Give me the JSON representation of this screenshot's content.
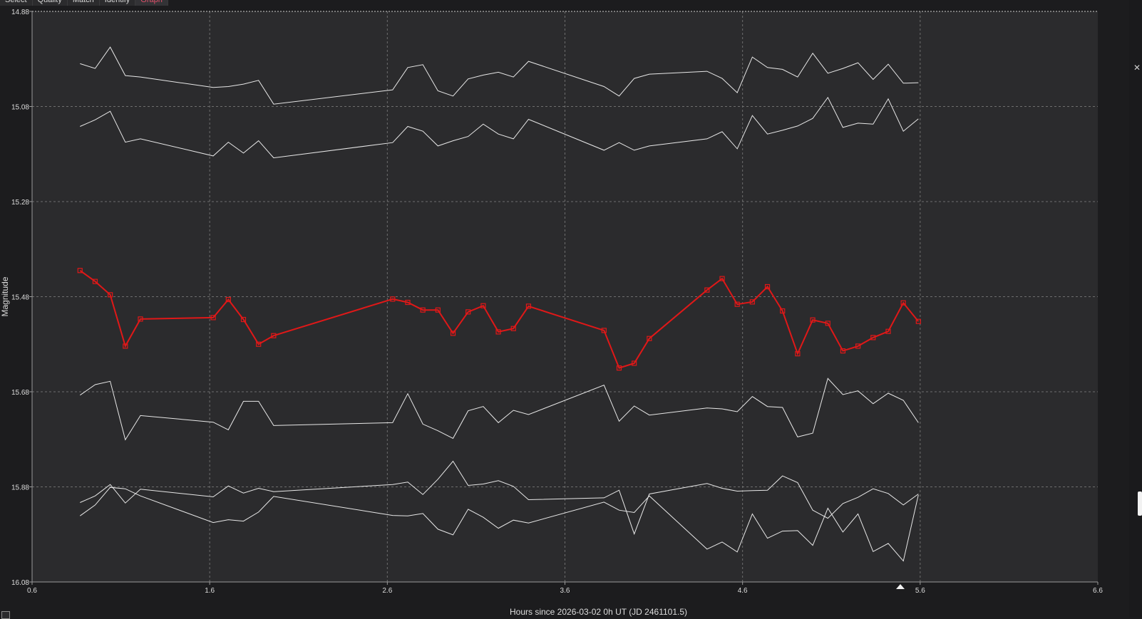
{
  "tabs": [
    "Select",
    "Quality",
    "Match",
    "Identify",
    "Graph"
  ],
  "active_tab": "Graph",
  "colors": {
    "background": "#2b2b2d",
    "target": "#e01818",
    "comparison": "#e8e8e8",
    "grid": "#6e6e6e"
  },
  "chart_data": {
    "type": "line",
    "xlabel": "Hours since 2026-03-02 0h UT (JD 2461101.5)",
    "ylabel": "Magnitude",
    "xlim": [
      0.6,
      6.6
    ],
    "ylim": [
      14.88,
      16.08
    ],
    "y_inverted": true,
    "grid": true,
    "xticks": [
      "0.6",
      "1.6",
      "2.6",
      "3.6",
      "4.6",
      "5.6",
      "6.6"
    ],
    "yticks": [
      "14.88",
      "15.08",
      "15.28",
      "15.48",
      "15.68",
      "15.88",
      "16.08"
    ],
    "x": [
      0.87,
      0.955,
      1.04,
      1.125,
      1.21,
      1.62,
      1.705,
      1.79,
      1.875,
      1.96,
      2.63,
      2.715,
      2.8,
      2.885,
      2.97,
      3.055,
      3.14,
      3.225,
      3.31,
      3.395,
      3.82,
      3.905,
      3.99,
      4.075,
      4.4,
      4.485,
      4.57,
      4.655,
      4.74,
      4.825,
      4.91,
      4.995,
      5.08,
      5.165,
      5.25,
      5.335,
      5.42,
      5.505,
      5.59
    ],
    "series": [
      {
        "role": "comparison-1",
        "values": [
          14.99,
          15.0,
          14.955,
          15.015,
          15.018,
          15.04,
          15.038,
          15.033,
          15.025,
          15.075,
          15.045,
          14.998,
          14.992,
          15.047,
          15.058,
          15.022,
          15.014,
          15.008,
          15.018,
          14.985,
          15.038,
          15.058,
          15.021,
          15.012,
          15.006,
          15.021,
          15.051,
          14.976,
          14.998,
          15.002,
          15.018,
          14.968,
          15.01,
          15.0,
          14.988,
          15.023,
          14.991,
          15.031,
          15.03
        ]
      },
      {
        "role": "comparison-2",
        "values": [
          15.122,
          15.108,
          15.09,
          15.155,
          15.148,
          15.184,
          15.155,
          15.178,
          15.152,
          15.188,
          15.156,
          15.122,
          15.132,
          15.163,
          15.152,
          15.143,
          15.117,
          15.138,
          15.148,
          15.107,
          15.172,
          15.156,
          15.172,
          15.163,
          15.148,
          15.133,
          15.169,
          15.099,
          15.138,
          15.13,
          15.121,
          15.105,
          15.061,
          15.124,
          15.115,
          15.117,
          15.064,
          15.132,
          15.106
        ]
      },
      {
        "role": "target",
        "values": [
          15.425,
          15.448,
          15.476,
          15.584,
          15.527,
          15.524,
          15.486,
          15.528,
          15.58,
          15.562,
          15.485,
          15.492,
          15.508,
          15.508,
          15.557,
          15.512,
          15.499,
          15.554,
          15.547,
          15.5,
          15.551,
          15.63,
          15.62,
          15.568,
          15.466,
          15.442,
          15.496,
          15.491,
          15.459,
          15.51,
          15.6,
          15.529,
          15.536,
          15.594,
          15.584,
          15.566,
          15.553,
          15.493,
          15.532
        ]
      },
      {
        "role": "comparison-3",
        "values": [
          15.687,
          15.665,
          15.658,
          15.781,
          15.73,
          15.744,
          15.76,
          15.7,
          15.7,
          15.751,
          15.745,
          15.684,
          15.748,
          15.762,
          15.778,
          15.72,
          15.711,
          15.745,
          15.719,
          15.728,
          15.666,
          15.742,
          15.71,
          15.729,
          15.714,
          15.716,
          15.722,
          15.69,
          15.711,
          15.713,
          15.775,
          15.767,
          15.652,
          15.686,
          15.678,
          15.705,
          15.683,
          15.698,
          15.745
        ]
      },
      {
        "role": "comparison-4",
        "values": [
          15.913,
          15.899,
          15.875,
          15.914,
          15.885,
          15.901,
          15.878,
          15.893,
          15.883,
          15.89,
          15.875,
          15.87,
          15.896,
          15.864,
          15.826,
          15.877,
          15.874,
          15.867,
          15.879,
          15.907,
          15.903,
          15.887,
          15.979,
          15.895,
          15.873,
          15.883,
          15.889,
          15.888,
          15.887,
          15.857,
          15.871,
          15.929,
          15.946,
          15.915,
          15.902,
          15.884,
          15.894,
          15.918,
          15.895
        ]
      },
      {
        "role": "comparison-5",
        "values": [
          15.941,
          15.918,
          15.881,
          15.884,
          15.899,
          15.955,
          15.949,
          15.952,
          15.933,
          15.9,
          15.94,
          15.941,
          15.936,
          15.969,
          15.981,
          15.927,
          15.944,
          15.967,
          15.95,
          15.956,
          15.912,
          15.929,
          15.934,
          15.899,
          16.011,
          15.996,
          16.017,
          15.937,
          15.988,
          15.973,
          15.972,
          16.003,
          15.925,
          15.975,
          15.937,
          16.016,
          15.999,
          16.036,
          15.897
        ]
      }
    ]
  }
}
